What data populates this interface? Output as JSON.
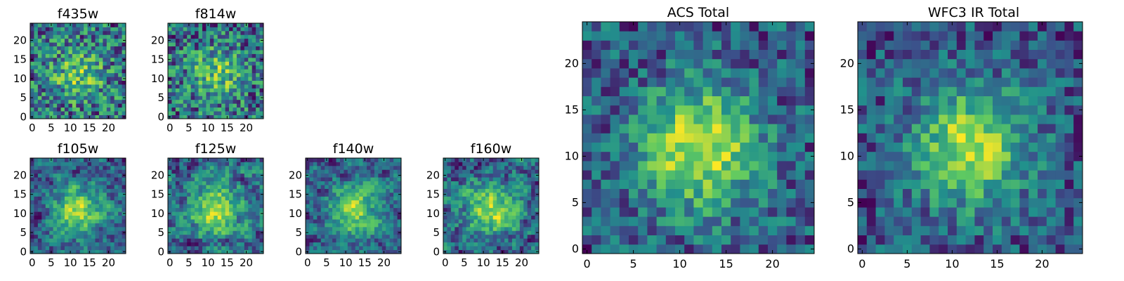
{
  "figure": {
    "description_colormap": "viridis",
    "colormap_stops": [
      "#440154",
      "#3b528b",
      "#21918c",
      "#5ec962",
      "#fde725"
    ]
  },
  "chart_data": [
    {
      "type": "heatmap",
      "id": "f435w",
      "title": "f435w",
      "xlim": [
        -0.5,
        24.5
      ],
      "ylim": [
        -0.5,
        24.5
      ],
      "xticks": [
        0,
        5,
        10,
        15,
        20
      ],
      "yticks": [
        0,
        5,
        10,
        15,
        20
      ],
      "xtick_labels": [
        "0",
        "5",
        "10",
        "15",
        "20"
      ],
      "ytick_labels": [
        "0",
        "5",
        "10",
        "15",
        "20"
      ],
      "grid": false,
      "seed": 435,
      "noise": 0.9,
      "center_peak": 0.45,
      "smooth": 0.0,
      "grid_size": 25
    },
    {
      "type": "heatmap",
      "id": "f814w",
      "title": "f814w",
      "xlim": [
        -0.5,
        24.5
      ],
      "ylim": [
        -0.5,
        24.5
      ],
      "xticks": [
        0,
        5,
        10,
        15,
        20
      ],
      "yticks": [
        0,
        5,
        10,
        15,
        20
      ],
      "xtick_labels": [
        "0",
        "5",
        "10",
        "15",
        "20"
      ],
      "ytick_labels": [
        "0",
        "5",
        "10",
        "15",
        "20"
      ],
      "grid": false,
      "seed": 814,
      "noise": 0.9,
      "center_peak": 0.5,
      "smooth": 0.0,
      "grid_size": 25
    },
    {
      "type": "heatmap",
      "id": "f105w",
      "title": "f105w",
      "xlim": [
        -0.5,
        24.5
      ],
      "ylim": [
        -0.5,
        24.5
      ],
      "xticks": [
        0,
        5,
        10,
        15,
        20
      ],
      "yticks": [
        0,
        5,
        10,
        15,
        20
      ],
      "xtick_labels": [
        "0",
        "5",
        "10",
        "15",
        "20"
      ],
      "ytick_labels": [
        "0",
        "5",
        "10",
        "15",
        "20"
      ],
      "grid": false,
      "seed": 105,
      "noise": 0.85,
      "center_peak": 0.6,
      "smooth": 0.55,
      "grid_size": 25
    },
    {
      "type": "heatmap",
      "id": "f125w",
      "title": "f125w",
      "xlim": [
        -0.5,
        24.5
      ],
      "ylim": [
        -0.5,
        24.5
      ],
      "xticks": [
        0,
        5,
        10,
        15,
        20
      ],
      "yticks": [
        0,
        5,
        10,
        15,
        20
      ],
      "xtick_labels": [
        "0",
        "5",
        "10",
        "15",
        "20"
      ],
      "ytick_labels": [
        "0",
        "5",
        "10",
        "15",
        "20"
      ],
      "grid": false,
      "seed": 125,
      "noise": 0.85,
      "center_peak": 0.6,
      "smooth": 0.55,
      "grid_size": 25
    },
    {
      "type": "heatmap",
      "id": "f140w",
      "title": "f140w",
      "xlim": [
        -0.5,
        24.5
      ],
      "ylim": [
        -0.5,
        24.5
      ],
      "xticks": [
        0,
        5,
        10,
        15,
        20
      ],
      "yticks": [
        0,
        5,
        10,
        15,
        20
      ],
      "xtick_labels": [
        "0",
        "5",
        "10",
        "15",
        "20"
      ],
      "ytick_labels": [
        "0",
        "5",
        "10",
        "15",
        "20"
      ],
      "grid": false,
      "seed": 140,
      "noise": 0.85,
      "center_peak": 0.6,
      "smooth": 0.55,
      "grid_size": 25
    },
    {
      "type": "heatmap",
      "id": "f160w",
      "title": "f160w",
      "xlim": [
        -0.5,
        24.5
      ],
      "ylim": [
        -0.5,
        24.5
      ],
      "xticks": [
        0,
        5,
        10,
        15,
        20
      ],
      "yticks": [
        0,
        5,
        10,
        15,
        20
      ],
      "xtick_labels": [
        "0",
        "5",
        "10",
        "15",
        "20"
      ],
      "ytick_labels": [
        "0",
        "5",
        "10",
        "15",
        "20"
      ],
      "grid": false,
      "seed": 160,
      "noise": 0.85,
      "center_peak": 0.6,
      "smooth": 0.55,
      "grid_size": 25
    },
    {
      "type": "heatmap",
      "id": "acs-total",
      "title": "ACS Total",
      "xlim": [
        -0.5,
        24.5
      ],
      "ylim": [
        -0.5,
        24.5
      ],
      "xticks": [
        0,
        5,
        10,
        15,
        20
      ],
      "yticks": [
        0,
        5,
        10,
        15,
        20
      ],
      "xtick_labels": [
        "0",
        "5",
        "10",
        "15",
        "20"
      ],
      "ytick_labels": [
        "0",
        "5",
        "10",
        "15",
        "20"
      ],
      "grid": false,
      "seed": 2001,
      "noise": 0.55,
      "center_peak": 0.75,
      "smooth": 0.1,
      "grid_size": 25
    },
    {
      "type": "heatmap",
      "id": "wfc3-ir-total",
      "title": "WFC3 IR Total",
      "xlim": [
        -0.5,
        24.5
      ],
      "ylim": [
        -0.5,
        24.5
      ],
      "xticks": [
        0,
        5,
        10,
        15,
        20
      ],
      "yticks": [
        0,
        5,
        10,
        15,
        20
      ],
      "xtick_labels": [
        "0",
        "5",
        "10",
        "15",
        "20"
      ],
      "ytick_labels": [
        "0",
        "5",
        "10",
        "15",
        "20"
      ],
      "grid": false,
      "seed": 3003,
      "noise": 0.55,
      "center_peak": 0.75,
      "smooth": 0.1,
      "grid_size": 25
    }
  ]
}
